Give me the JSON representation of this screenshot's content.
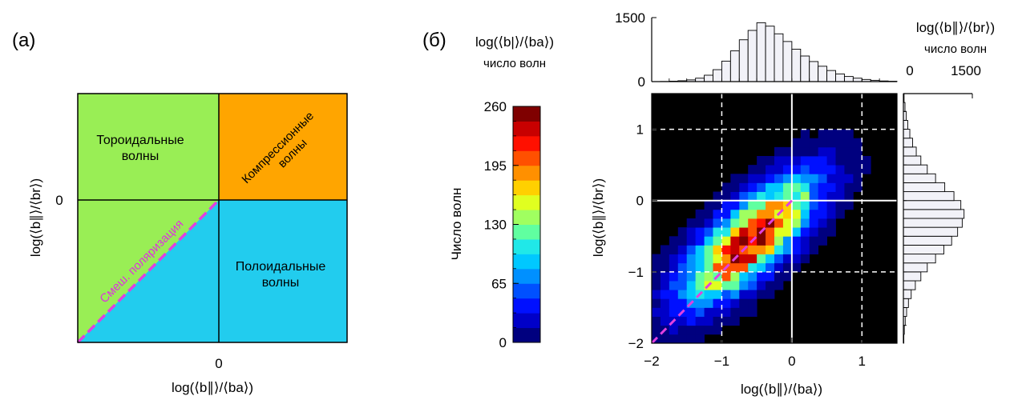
{
  "panel_a": {
    "label": "(а)",
    "regions": {
      "toroidal": {
        "label_lines": [
          "Тороидальные",
          "волны"
        ],
        "color": "#99ee55"
      },
      "compressional": {
        "label_lines": [
          "Компрессионные",
          "волны"
        ],
        "color": "#ffa500"
      },
      "poloidal": {
        "label_lines": [
          "Полоидальные",
          "волны"
        ],
        "color": "#22ccee"
      },
      "mixed": {
        "label": "Смеш. поляризация",
        "color": "#99ee55"
      }
    },
    "diagonal_color": "#e040e0",
    "y_tick": "0",
    "x_tick": "0",
    "ylabel": "log(⟨b∥⟩/⟨br⟩)",
    "xlabel": "log(⟨b∥⟩/⟨ba⟩)"
  },
  "panel_b": {
    "label": "(б)",
    "colorbar": {
      "header_line1": "log(⟨b|⟩/⟨ba⟩)",
      "header_line2": "число волн",
      "title": "Число волн",
      "ticks": [
        0,
        65,
        130,
        195,
        260
      ],
      "range": [
        0,
        260
      ],
      "colors": [
        "#00007f",
        "#0000c8",
        "#0010ff",
        "#0050ff",
        "#0090ff",
        "#00c8ff",
        "#20e8e8",
        "#60ffa0",
        "#a0ff60",
        "#e0ff20",
        "#ffd000",
        "#ff9000",
        "#ff5000",
        "#ff1000",
        "#c80000",
        "#7f0000"
      ]
    },
    "chart_data": {
      "type": "heatmap",
      "xlabel": "log(⟨b∥⟩/⟨ba⟩)",
      "ylabel": "log(⟨b∥⟩/⟨br⟩)",
      "xlim": [
        -2,
        1.5
      ],
      "ylim": [
        -2,
        1.5
      ],
      "x_ticks": [
        -2,
        -1,
        0,
        1
      ],
      "y_ticks": [
        -2,
        -1,
        0,
        1
      ],
      "bin_size": 0.125,
      "density": {
        "center": [
          -0.6,
          -0.55
        ],
        "peak": 260,
        "sigma_major": 0.75,
        "sigma_minor": 0.28,
        "angle_deg": 42
      },
      "reference_lines": {
        "solid_x": 0,
        "solid_y": 0,
        "dashed_x": [
          -1,
          1
        ],
        "dashed_y": [
          -1,
          1
        ],
        "diagonal_color": "#e040e0"
      }
    },
    "top_histogram": {
      "ylabel": "log(⟨b∥⟩/⟨br⟩)",
      "ylabel2": "число волн",
      "ylim": [
        0,
        1500
      ],
      "y_ticks": [
        "0",
        "1500"
      ],
      "bin_edges_start": -2,
      "bin_width": 0.125,
      "counts": [
        0,
        3,
        10,
        20,
        40,
        80,
        150,
        280,
        480,
        720,
        980,
        1200,
        1380,
        1300,
        1120,
        940,
        760,
        600,
        470,
        360,
        260,
        180,
        120,
        80,
        50,
        30,
        15,
        8
      ]
    },
    "right_histogram": {
      "xlim": [
        0,
        1500
      ],
      "x_ticks": [
        "0",
        "1500"
      ],
      "bin_edges_start": -2,
      "bin_width": 0.125,
      "counts": [
        10,
        20,
        40,
        70,
        110,
        170,
        260,
        380,
        520,
        700,
        880,
        1050,
        1180,
        1280,
        1320,
        1250,
        1100,
        900,
        700,
        520,
        380,
        280,
        200,
        140,
        95,
        60,
        35,
        15
      ]
    }
  }
}
